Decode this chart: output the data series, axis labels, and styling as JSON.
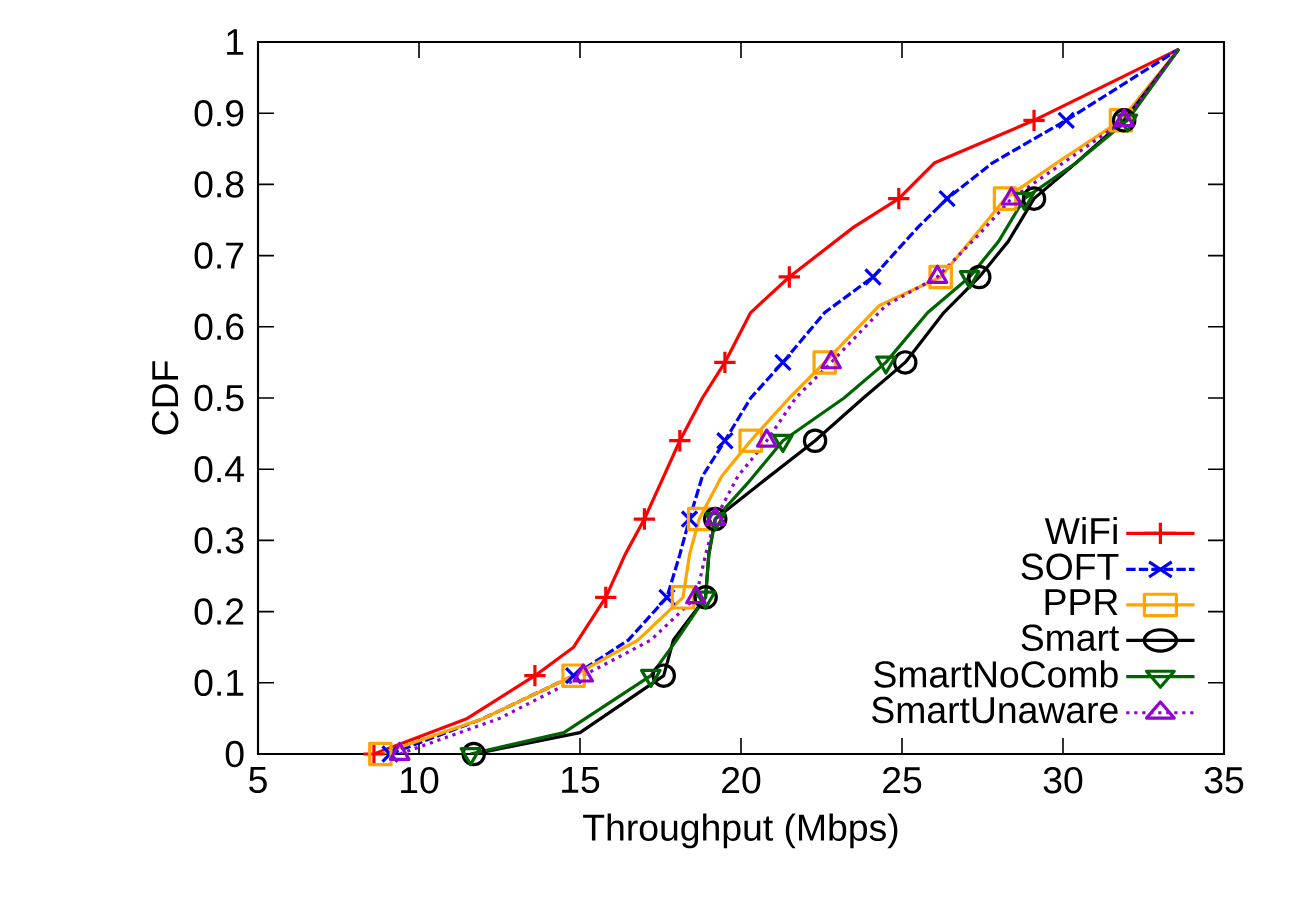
{
  "chart_data": {
    "type": "line",
    "xlabel": "Throughput (Mbps)",
    "ylabel": "CDF",
    "xlim": [
      5,
      35
    ],
    "xticks": [
      5,
      10,
      15,
      20,
      25,
      30,
      35
    ],
    "ylim": [
      0,
      1
    ],
    "yticks": [
      0,
      0.1,
      0.2,
      0.3,
      0.4,
      0.5,
      0.6,
      0.7,
      0.8,
      0.9,
      1
    ],
    "legend": "bottom right",
    "grid": false,
    "series": [
      {
        "name": "WiFi",
        "color": "#ff0000",
        "marker": "plus",
        "line_style": "solid",
        "x": [
          8.6,
          11.5,
          13.6,
          14.8,
          15.8,
          16.4,
          17.0,
          17.6,
          18.1,
          18.8,
          19.5,
          20.3,
          21.5,
          23.5,
          24.9,
          26.0,
          29.1,
          33.6
        ],
        "values": [
          0,
          0.05,
          0.11,
          0.15,
          0.22,
          0.28,
          0.33,
          0.39,
          0.44,
          0.5,
          0.55,
          0.62,
          0.67,
          0.74,
          0.78,
          0.83,
          0.89,
          0.99
        ]
      },
      {
        "name": "SOFT",
        "color": "#0000ff",
        "marker": "cross",
        "line_style": "dashed",
        "x": [
          9.1,
          12.0,
          14.8,
          16.5,
          17.7,
          18.1,
          18.4,
          18.8,
          19.5,
          20.3,
          21.3,
          22.6,
          24.1,
          25.5,
          26.4,
          27.8,
          30.1,
          33.6
        ],
        "values": [
          0,
          0.05,
          0.11,
          0.16,
          0.22,
          0.28,
          0.33,
          0.39,
          0.44,
          0.5,
          0.55,
          0.62,
          0.67,
          0.74,
          0.78,
          0.83,
          0.89,
          0.99
        ]
      },
      {
        "name": "PPR",
        "color": "#ffa500",
        "marker": "square",
        "line_style": "solid",
        "x": [
          8.8,
          12.0,
          14.8,
          16.8,
          18.2,
          18.4,
          18.7,
          19.4,
          20.3,
          21.5,
          22.6,
          24.3,
          26.2,
          27.3,
          28.2,
          29.8,
          31.8,
          33.6
        ],
        "values": [
          0,
          0.05,
          0.11,
          0.16,
          0.22,
          0.28,
          0.33,
          0.39,
          0.44,
          0.5,
          0.55,
          0.63,
          0.67,
          0.73,
          0.78,
          0.83,
          0.89,
          0.99
        ]
      },
      {
        "name": "Smart",
        "color": "#000000",
        "marker": "circle",
        "line_style": "solid",
        "x": [
          11.7,
          15.0,
          17.6,
          17.9,
          18.9,
          19.0,
          19.2,
          20.6,
          22.3,
          23.8,
          25.1,
          26.3,
          27.4,
          28.3,
          29.1,
          30.4,
          31.9,
          33.6
        ],
        "values": [
          0,
          0.03,
          0.11,
          0.16,
          0.22,
          0.28,
          0.33,
          0.38,
          0.44,
          0.5,
          0.55,
          0.62,
          0.67,
          0.72,
          0.78,
          0.83,
          0.89,
          0.99
        ]
      },
      {
        "name": "SmartNoComb",
        "color": "#006400",
        "marker": "triangle-down",
        "line_style": "solid",
        "x": [
          11.6,
          14.5,
          17.2,
          18.0,
          18.9,
          19.0,
          19.2,
          20.2,
          21.3,
          23.2,
          24.5,
          25.8,
          27.1,
          28.0,
          28.8,
          30.4,
          32.0,
          33.6
        ],
        "values": [
          0,
          0.03,
          0.11,
          0.16,
          0.22,
          0.28,
          0.33,
          0.38,
          0.44,
          0.5,
          0.55,
          0.62,
          0.67,
          0.72,
          0.78,
          0.83,
          0.89,
          0.99
        ]
      },
      {
        "name": "SmartUnaware",
        "color": "#9400d3",
        "marker": "triangle",
        "line_style": "dotted",
        "x": [
          9.4,
          12.5,
          15.1,
          17.2,
          18.6,
          18.9,
          19.2,
          19.9,
          20.8,
          21.7,
          22.8,
          24.5,
          26.1,
          27.4,
          28.4,
          30.0,
          31.9,
          33.6
        ],
        "values": [
          0,
          0.05,
          0.11,
          0.16,
          0.22,
          0.28,
          0.33,
          0.39,
          0.44,
          0.5,
          0.55,
          0.63,
          0.67,
          0.73,
          0.78,
          0.83,
          0.89,
          0.99
        ]
      }
    ]
  }
}
